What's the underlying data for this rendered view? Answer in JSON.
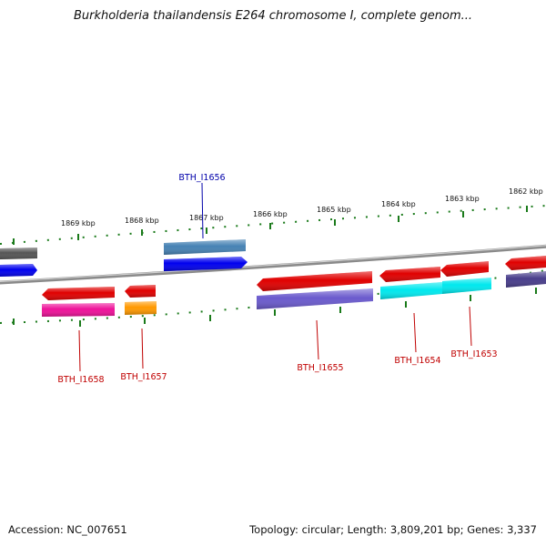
{
  "title": "Burkholderia thailandensis E264 chromosome I, complete genom...",
  "footer": {
    "accession": "Accession: NC_007651",
    "summary": "Topology: circular; Length: 3,809,201 bp; Genes: 3,337"
  },
  "scale_labels": [
    "1869 kbp",
    "1868 kbp",
    "1867 kbp",
    "1866 kbp",
    "1865 kbp",
    "1864 kbp",
    "1863 kbp",
    "1862 kbp"
  ],
  "gene_labels": {
    "top": [
      "BTH_I1656"
    ],
    "bottom": [
      "BTH_I1658",
      "BTH_I1657",
      "BTH_I1655",
      "BTH_I1654",
      "BTH_I1653"
    ]
  },
  "colors": {
    "backbone": "#8a8a8a",
    "tick": "#1a7a1a",
    "label_top": "#0000aa",
    "label_bottom": "#c00000",
    "red": "#e00000",
    "blue": "#0000ee",
    "steelblue": "#4682b4",
    "magenta": "#ee1199",
    "orange": "#ff9900",
    "slateblue": "#6a5acd",
    "cyan": "#00e8ee",
    "darkslateblue": "#483d8b",
    "gray": "#555555"
  }
}
